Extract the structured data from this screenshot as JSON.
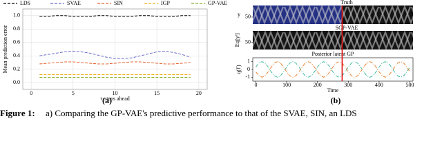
{
  "chart_data": [
    {
      "type": "line",
      "panel_label": "(a)",
      "ylabel": "Mean prediction error",
      "xlabel": "τ-steps ahead",
      "x": [
        1,
        2,
        3,
        4,
        5,
        6,
        7,
        8,
        9,
        10,
        11,
        12,
        13,
        14,
        15,
        16,
        17,
        18,
        19
      ],
      "series": [
        {
          "name": "LDS",
          "color": "#000000",
          "values": [
            0.99,
            0.99,
            1.0,
            1.0,
            0.99,
            0.99,
            0.99,
            1.0,
            1.0,
            0.99,
            0.99,
            0.99,
            1.0,
            1.0,
            0.99,
            0.99,
            0.99,
            1.0,
            1.0
          ]
        },
        {
          "name": "SVAE",
          "color": "#6b6bc8",
          "values": [
            0.4,
            0.42,
            0.44,
            0.46,
            0.47,
            0.46,
            0.44,
            0.41,
            0.38,
            0.36,
            0.36,
            0.37,
            0.4,
            0.43,
            0.46,
            0.47,
            0.45,
            0.42,
            0.38
          ]
        },
        {
          "name": "SIN",
          "color": "#e8602c",
          "values": [
            0.28,
            0.29,
            0.3,
            0.31,
            0.31,
            0.3,
            0.29,
            0.28,
            0.28,
            0.29,
            0.3,
            0.31,
            0.31,
            0.3,
            0.29,
            0.28,
            0.28,
            0.29,
            0.3
          ]
        },
        {
          "name": "IGP",
          "color": "#f0b020",
          "values": [
            0.12,
            0.12,
            0.12,
            0.12,
            0.12,
            0.12,
            0.12,
            0.12,
            0.12,
            0.12,
            0.12,
            0.12,
            0.12,
            0.12,
            0.12,
            0.12,
            0.12,
            0.12,
            0.12
          ]
        },
        {
          "name": "GP-VAE",
          "color": "#8ab030",
          "values": [
            0.08,
            0.08,
            0.08,
            0.08,
            0.08,
            0.08,
            0.08,
            0.08,
            0.08,
            0.08,
            0.08,
            0.08,
            0.08,
            0.08,
            0.08,
            0.08,
            0.08,
            0.08,
            0.08
          ]
        }
      ],
      "xlim": [
        -1,
        21
      ],
      "xticks": [
        0,
        5,
        10,
        15,
        20
      ],
      "ylim": [
        -0.1,
        1.1
      ],
      "yticks": [
        {
          "value": 0,
          "label": "0.0"
        },
        {
          "value": 0.2,
          "label": "0.2"
        },
        {
          "value": 0.4,
          "label": "0.4"
        },
        {
          "value": 0.6,
          "label": "0.6"
        },
        {
          "value": 0.8,
          "label": "0.8"
        },
        {
          "value": 1,
          "label": "1.0"
        }
      ],
      "grid": true,
      "legend": "top"
    },
    {
      "type": "line",
      "panel_label": "(b)",
      "title": "Posterior latent GP",
      "ylabel": "q(fⁱ)",
      "xlabel": "Time",
      "heatmaps": [
        {
          "title": "Truth",
          "ylabel": "y",
          "ylim": [
            0,
            80
          ],
          "yticks": [
            50
          ]
        },
        {
          "title": "SGP-VAE",
          "ylabel": "𝔼q[yⁱ]",
          "ylim": [
            0,
            80
          ],
          "yticks": [
            50
          ]
        }
      ],
      "split_time": 280,
      "split_color": "#e00000",
      "x": [
        0,
        10,
        20,
        30,
        40,
        50,
        60,
        70,
        80,
        90,
        100,
        110,
        120,
        130,
        140,
        150,
        160,
        170,
        180,
        190,
        200,
        210,
        220,
        230,
        240,
        250,
        260,
        270,
        280,
        290,
        300,
        310,
        320,
        330,
        340,
        350,
        360,
        370,
        380,
        390,
        400,
        410,
        420,
        430,
        440,
        450,
        460,
        470,
        480,
        490,
        500
      ],
      "series": [
        {
          "color": "#3bb89c",
          "values": [
            0.31,
            0.81,
            1,
            0.81,
            0.31,
            -0.31,
            -0.81,
            -1,
            -0.81,
            -0.31,
            0.31,
            0.81,
            1,
            0.81,
            0.31,
            -0.31,
            -0.81,
            -1,
            -0.81,
            -0.31,
            0.31,
            0.81,
            1,
            0.81,
            0.31,
            -0.31,
            -0.81,
            -1,
            -0.81,
            -0.31,
            0.31,
            0.81,
            1,
            0.81,
            0.31,
            -0.31,
            -0.81,
            -1,
            -0.81,
            -0.31,
            0.31,
            0.81,
            1,
            0.81,
            0.31,
            -0.31,
            -0.81,
            -1,
            -0.81,
            -0.31,
            0.31
          ]
        },
        {
          "color": "#e8802c",
          "values": [
            -0.31,
            -0.81,
            -1,
            -0.81,
            -0.31,
            0.31,
            0.81,
            1,
            0.81,
            0.31,
            -0.31,
            -0.81,
            -1,
            -0.81,
            -0.31,
            0.31,
            0.81,
            1,
            0.81,
            0.31,
            -0.31,
            -0.81,
            -1,
            -0.81,
            -0.31,
            0.31,
            0.81,
            1,
            0.81,
            0.31,
            -0.31,
            -0.81,
            -1,
            -0.81,
            -0.31,
            0.31,
            0.81,
            1,
            0.81,
            0.31,
            -0.31,
            -0.81,
            -1,
            -0.81,
            -0.31,
            0.31,
            0.81,
            1,
            0.81,
            0.31,
            -0.31
          ]
        }
      ],
      "xlim": [
        -10,
        510
      ],
      "xticks": [
        0,
        100,
        200,
        300,
        400,
        500
      ],
      "ylim": [
        -1.5,
        1.5
      ],
      "yticks": [
        -1,
        0,
        1
      ],
      "grid": false
    }
  ],
  "caption": {
    "label": "Figure 1:",
    "text": "a) Comparing the GP-VAE's predictive performance to that of the SVAE, SIN, an LDS"
  }
}
